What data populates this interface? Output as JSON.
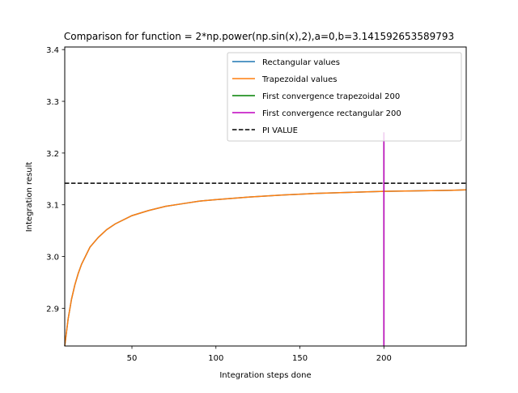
{
  "chart_data": {
    "type": "line",
    "title": "Comparison for function = 2*np.power(np.sin(x),2),a=0,b=3.141592653589793",
    "xlabel": "Integration steps done",
    "ylabel": "Integration result",
    "xlim": [
      10,
      249
    ],
    "ylim": [
      2.827,
      3.405
    ],
    "xticks": [
      50,
      100,
      150,
      200
    ],
    "yticks": [
      2.9,
      3.0,
      3.1,
      3.2,
      3.3,
      3.4
    ],
    "xtick_labels": [
      "50",
      "100",
      "150",
      "200"
    ],
    "ytick_labels": [
      "2.9",
      "3.0",
      "3.1",
      "3.2",
      "3.3",
      "3.4"
    ],
    "grid": false,
    "legend_position": "top-right",
    "series": [
      {
        "name": "Rectangular values",
        "color": "#1f77b4",
        "style": "solid",
        "x": [
          10,
          12,
          14,
          16,
          18,
          20,
          25,
          30,
          35,
          40,
          50,
          60,
          70,
          80,
          90,
          100,
          120,
          140,
          160,
          180,
          200,
          220,
          240,
          249
        ],
        "y": [
          2.827,
          2.879,
          2.917,
          2.945,
          2.967,
          2.985,
          3.018,
          3.037,
          3.052,
          3.063,
          3.079,
          3.089,
          3.097,
          3.102,
          3.107,
          3.11,
          3.115,
          3.119,
          3.122,
          3.124,
          3.126,
          3.127,
          3.128,
          3.129
        ]
      },
      {
        "name": "Trapezoidal values",
        "color": "#ff7f0e",
        "style": "solid",
        "x": [
          10,
          12,
          14,
          16,
          18,
          20,
          25,
          30,
          35,
          40,
          50,
          60,
          70,
          80,
          90,
          100,
          120,
          140,
          160,
          180,
          200,
          220,
          240,
          249
        ],
        "y": [
          2.827,
          2.879,
          2.917,
          2.945,
          2.967,
          2.985,
          3.018,
          3.037,
          3.052,
          3.063,
          3.079,
          3.089,
          3.097,
          3.102,
          3.107,
          3.11,
          3.115,
          3.119,
          3.122,
          3.124,
          3.126,
          3.127,
          3.128,
          3.129
        ]
      },
      {
        "name": "First convergence trapezoidal 200",
        "color": "#008000",
        "style": "solid",
        "x": [
          200,
          200
        ],
        "y": [
          2.827,
          3.24
        ]
      },
      {
        "name": "First convergence rectangular 200",
        "color": "#bf00bf",
        "style": "solid",
        "x": [
          200,
          200
        ],
        "y": [
          2.827,
          3.24
        ]
      },
      {
        "name": "PI VALUE",
        "color": "#000000",
        "style": "dashed",
        "x": [
          10,
          249
        ],
        "y": [
          3.141592653589793,
          3.141592653589793
        ]
      }
    ]
  }
}
